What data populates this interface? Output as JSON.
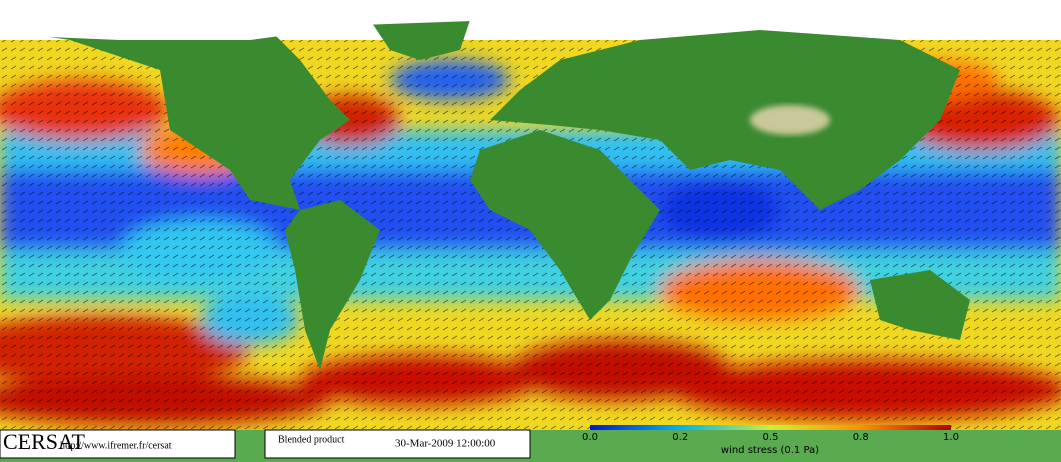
{
  "footer": {
    "logo": "CERSAT",
    "url": "http://www.ifremer.fr/cersat",
    "product": "Blended product",
    "date": "30-Mar-2009 12:00:00"
  },
  "colorbar": {
    "ticks": [
      "0.0",
      "0.2",
      "0.5",
      "0.8",
      "1.0"
    ],
    "label": "wind stress (0.1 Pa)"
  }
}
